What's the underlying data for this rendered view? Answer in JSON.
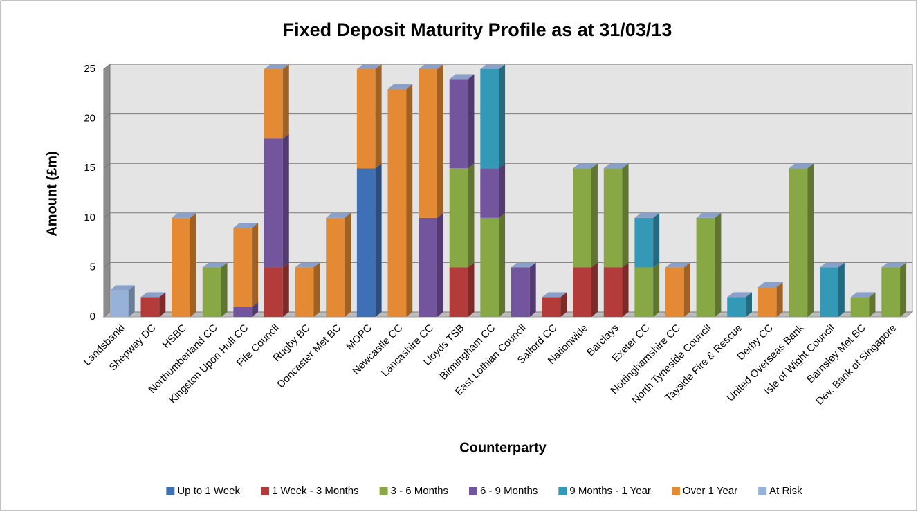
{
  "chart_data": {
    "type": "bar",
    "stacked": true,
    "title": "Fixed Deposit Maturity Profile as at 31/03/13",
    "y_label": "Amount (£m)",
    "x_label": "Counterparty",
    "categories": [
      "Landsbanki",
      "Shepway DC",
      "HSBC",
      "Northumberland CC",
      "Kingston Upon Hull CC",
      "Fife Council",
      "Rugby BC",
      "Doncaster Met BC",
      "MOPC",
      "Newcastle CC",
      "Lancashire CC",
      "Lloyds TSB",
      "Birmingham CC",
      "East Lothian Council",
      "Salford CC",
      "Nationwide",
      "Barclays",
      "Exeter CC",
      "Nottinghamshire CC",
      "North Tyneside Council",
      "Tayside Fire & Rescue",
      "Derby CC",
      "United Overseas Bank",
      "Isle of Wight Council",
      "Barnsley Met BC",
      "Dev. Bank of Singapore"
    ],
    "series": [
      {
        "name": "Up to 1 Week",
        "color": "#3f6fb4",
        "values": [
          null,
          null,
          null,
          null,
          null,
          null,
          null,
          null,
          15,
          null,
          null,
          null,
          null,
          null,
          null,
          null,
          null,
          null,
          null,
          null,
          null,
          null,
          null,
          null,
          null,
          null
        ]
      },
      {
        "name": "1 Week - 3 Months",
        "color": "#b33c3a",
        "values": [
          null,
          2,
          null,
          null,
          null,
          5,
          null,
          null,
          null,
          null,
          null,
          5,
          null,
          null,
          2,
          5,
          5,
          null,
          null,
          null,
          null,
          null,
          null,
          null,
          null,
          null
        ]
      },
      {
        "name": "3 - 6 Months",
        "color": "#88a745",
        "values": [
          null,
          null,
          null,
          5,
          null,
          null,
          null,
          null,
          null,
          null,
          null,
          10,
          10,
          null,
          null,
          10,
          10,
          5,
          null,
          10,
          null,
          null,
          15,
          null,
          2,
          5
        ]
      },
      {
        "name": "6 - 9 Months",
        "color": "#73559e",
        "values": [
          null,
          null,
          null,
          null,
          1,
          13,
          null,
          null,
          null,
          null,
          10,
          9,
          5,
          5,
          null,
          null,
          null,
          null,
          null,
          null,
          null,
          null,
          null,
          null,
          null,
          null
        ]
      },
      {
        "name": "9 Months - 1 Year",
        "color": "#3499b6",
        "values": [
          null,
          null,
          null,
          null,
          null,
          null,
          null,
          null,
          null,
          null,
          null,
          null,
          10,
          null,
          null,
          null,
          null,
          5,
          null,
          null,
          2,
          null,
          null,
          5,
          null,
          null
        ]
      },
      {
        "name": "Over 1 Year",
        "color": "#e48a35",
        "values": [
          null,
          null,
          10,
          null,
          8,
          7,
          5,
          10,
          10,
          23,
          15,
          null,
          null,
          null,
          null,
          null,
          null,
          null,
          5,
          null,
          null,
          3,
          null,
          null,
          null,
          null
        ]
      },
      {
        "name": "At Risk",
        "color": "#96b2d8",
        "values": [
          2.7,
          null,
          null,
          null,
          null,
          null,
          null,
          null,
          null,
          null,
          null,
          null,
          null,
          null,
          null,
          null,
          null,
          null,
          null,
          null,
          null,
          null,
          null,
          null,
          null,
          null
        ]
      }
    ],
    "ylim": [
      0,
      25
    ],
    "yticks": [
      0,
      5,
      10,
      15,
      20,
      25
    ],
    "grid": true,
    "legend": "bottom"
  }
}
